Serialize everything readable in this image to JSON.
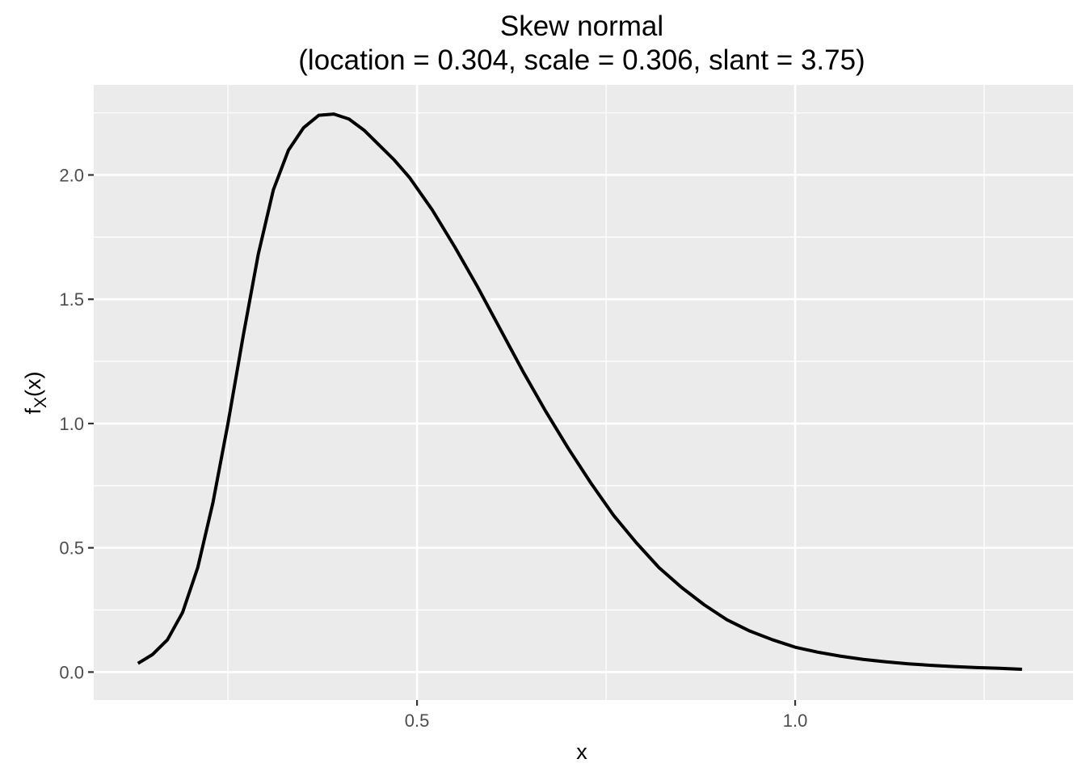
{
  "chart_data": {
    "type": "line",
    "title": "Skew normal",
    "subtitle": "(location = 0.304, scale = 0.306, slant = 3.75)",
    "xlabel": "x",
    "ylabel_main": "f",
    "ylabel_sub": "X",
    "ylabel_suffix": "(x)",
    "xlim": [
      0.0725,
      1.3675
    ],
    "ylim": [
      -0.1125,
      2.3625
    ],
    "x_ticks": [
      0.5,
      1.0
    ],
    "x_tick_labels": [
      "0.5",
      "1.0"
    ],
    "y_ticks": [
      0.0,
      0.5,
      1.0,
      1.5,
      2.0
    ],
    "y_tick_labels": [
      "0.0",
      "0.5",
      "1.0",
      "1.5",
      "2.0"
    ],
    "grid": true,
    "panel_color": "#ebebeb",
    "series": [
      {
        "color": "#000000",
        "x": [
          0.131,
          0.15,
          0.17,
          0.19,
          0.21,
          0.23,
          0.25,
          0.27,
          0.29,
          0.31,
          0.33,
          0.35,
          0.37,
          0.39,
          0.41,
          0.43,
          0.45,
          0.47,
          0.49,
          0.52,
          0.55,
          0.58,
          0.61,
          0.64,
          0.67,
          0.7,
          0.73,
          0.76,
          0.79,
          0.82,
          0.85,
          0.88,
          0.91,
          0.94,
          0.97,
          1.0,
          1.03,
          1.06,
          1.09,
          1.12,
          1.15,
          1.18,
          1.21,
          1.24,
          1.27,
          1.3
        ],
        "y": [
          0.035,
          0.07,
          0.13,
          0.24,
          0.42,
          0.68,
          1.0,
          1.35,
          1.68,
          1.94,
          2.1,
          2.19,
          2.24,
          2.245,
          2.225,
          2.18,
          2.12,
          2.06,
          1.99,
          1.86,
          1.71,
          1.55,
          1.38,
          1.21,
          1.05,
          0.9,
          0.76,
          0.63,
          0.52,
          0.42,
          0.34,
          0.27,
          0.21,
          0.165,
          0.13,
          0.1,
          0.08,
          0.064,
          0.051,
          0.041,
          0.033,
          0.027,
          0.022,
          0.018,
          0.015,
          0.011
        ]
      }
    ]
  }
}
